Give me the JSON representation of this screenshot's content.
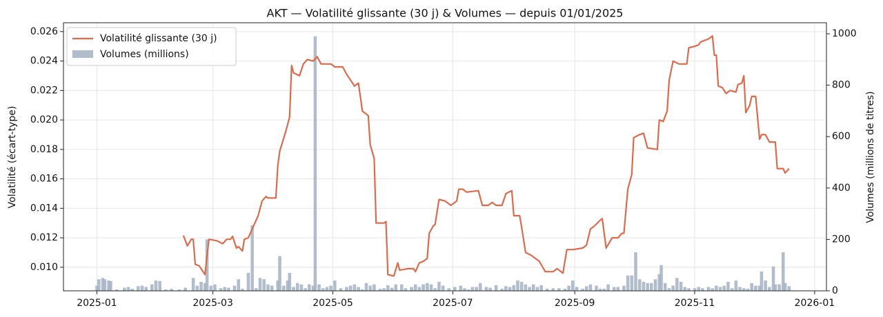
{
  "chart_data": {
    "type": "combo",
    "title": "AKT — Volatilité glissante (30 j) & Volumes — depuis 01/01/2025",
    "ylabel": "Volatilité (écart-type)",
    "y2label": "Volumes (millions de titres)",
    "xlim": [
      -17,
      371
    ],
    "xticks": [
      {
        "value": 0,
        "label": "2025-01"
      },
      {
        "value": 59,
        "label": "2025-03"
      },
      {
        "value": 120,
        "label": "2025-05"
      },
      {
        "value": 181,
        "label": "2025-07"
      },
      {
        "value": 243,
        "label": "2025-09"
      },
      {
        "value": 304,
        "label": "2025-11"
      },
      {
        "value": 365,
        "label": "2026-01"
      }
    ],
    "ylim": [
      0.0084,
      0.0266
    ],
    "yticks": [
      {
        "value": 0.01,
        "label": "0.010"
      },
      {
        "value": 0.012,
        "label": "0.012"
      },
      {
        "value": 0.014,
        "label": "0.014"
      },
      {
        "value": 0.016,
        "label": "0.016"
      },
      {
        "value": 0.018,
        "label": "0.018"
      },
      {
        "value": 0.02,
        "label": "0.020"
      },
      {
        "value": 0.022,
        "label": "0.022"
      },
      {
        "value": 0.024,
        "label": "0.024"
      },
      {
        "value": 0.026,
        "label": "0.026"
      }
    ],
    "y2lim": [
      0,
      1043
    ],
    "y2ticks": [
      0,
      200,
      400,
      600,
      800,
      1000
    ],
    "grid": true,
    "legend": "upper left",
    "series": [
      {
        "name": "Volatilité glissante (30 j)",
        "type": "line",
        "color": "#e0694a",
        "x": [
          44,
          46,
          48,
          49,
          50,
          52,
          55,
          56,
          57,
          61,
          64,
          66,
          68,
          69,
          71,
          72,
          74,
          75,
          77,
          79,
          82,
          84,
          86,
          87,
          91,
          92,
          93,
          96,
          98,
          99,
          100,
          103,
          105,
          107,
          110,
          112,
          114,
          119,
          121,
          125,
          127,
          131,
          133,
          135,
          138,
          139,
          141,
          142,
          146,
          147,
          148,
          151,
          153,
          154,
          158,
          161,
          162,
          164,
          166,
          168,
          169,
          171,
          172,
          174,
          177,
          180,
          183,
          184,
          186,
          188,
          194,
          196,
          199,
          201,
          203,
          206,
          208,
          211,
          212,
          215,
          216,
          218,
          221,
          225,
          228,
          232,
          234,
          237,
          239,
          242,
          247,
          249,
          251,
          253,
          256,
          257,
          259,
          262,
          265,
          267,
          268,
          270,
          272,
          273,
          276,
          278,
          280,
          285,
          286,
          288,
          290,
          291,
          293,
          296,
          300,
          301,
          304,
          306,
          307,
          311,
          313,
          314,
          315,
          316,
          318,
          320,
          322,
          325,
          326,
          328,
          329,
          330,
          332,
          333,
          335,
          337,
          338,
          340,
          342,
          345,
          346,
          349,
          350,
          352
        ],
        "values": [
          0.01215,
          0.01145,
          0.0119,
          0.0119,
          0.0102,
          0.0101,
          0.0095,
          0.0108,
          0.0119,
          0.0118,
          0.0116,
          0.0119,
          0.0119,
          0.0121,
          0.0113,
          0.0114,
          0.0111,
          0.0119,
          0.012,
          0.0126,
          0.0135,
          0.0145,
          0.0148,
          0.0147,
          0.0147,
          0.0169,
          0.0179,
          0.0192,
          0.0202,
          0.0237,
          0.0232,
          0.023,
          0.0238,
          0.0241,
          0.024,
          0.0243,
          0.0238,
          0.0238,
          0.0236,
          0.0236,
          0.0231,
          0.0223,
          0.0225,
          0.0206,
          0.0203,
          0.0183,
          0.0174,
          0.013,
          0.013,
          0.0131,
          0.0095,
          0.0094,
          0.0103,
          0.0098,
          0.0099,
          0.0099,
          0.0097,
          0.0103,
          0.0104,
          0.0106,
          0.0123,
          0.0128,
          0.0129,
          0.0146,
          0.0145,
          0.0142,
          0.0145,
          0.0153,
          0.0153,
          0.0151,
          0.0152,
          0.0142,
          0.0142,
          0.0144,
          0.0142,
          0.0142,
          0.015,
          0.0152,
          0.0135,
          0.0135,
          0.0127,
          0.011,
          0.0108,
          0.0104,
          0.0097,
          0.0097,
          0.0099,
          0.0096,
          0.0112,
          0.0112,
          0.0113,
          0.0115,
          0.0126,
          0.0128,
          0.0132,
          0.0133,
          0.0113,
          0.012,
          0.012,
          0.0123,
          0.0123,
          0.0153,
          0.0163,
          0.0188,
          0.019,
          0.0191,
          0.0181,
          0.018,
          0.02,
          0.0199,
          0.0206,
          0.0227,
          0.024,
          0.0238,
          0.0238,
          0.0249,
          0.025,
          0.0251,
          0.0253,
          0.0255,
          0.0257,
          0.0244,
          0.0244,
          0.0223,
          0.0222,
          0.0218,
          0.022,
          0.0219,
          0.0224,
          0.0225,
          0.023,
          0.0205,
          0.021,
          0.0216,
          0.0216,
          0.0187,
          0.019,
          0.019,
          0.0185,
          0.0185,
          0.0167,
          0.0167,
          0.0164,
          0.0167
        ]
      },
      {
        "name": "Volumes (millions)",
        "type": "bar",
        "axis": "y2",
        "color": "#a3b1c4",
        "x": [
          0,
          1,
          3,
          4,
          6,
          7,
          10,
          14,
          16,
          18,
          21,
          23,
          25,
          28,
          30,
          32,
          35,
          38,
          42,
          45,
          49,
          51,
          53,
          55,
          56,
          58,
          60,
          63,
          65,
          67,
          70,
          72,
          74,
          77,
          79,
          81,
          83,
          85,
          87,
          89,
          92,
          93,
          95,
          97,
          98,
          100,
          102,
          104,
          106,
          108,
          110,
          111,
          113,
          115,
          117,
          119,
          121,
          124,
          127,
          129,
          131,
          133,
          135,
          137,
          139,
          141,
          144,
          146,
          148,
          150,
          152,
          155,
          157,
          160,
          162,
          164,
          166,
          168,
          170,
          172,
          174,
          176,
          179,
          182,
          185,
          187,
          189,
          191,
          193,
          195,
          198,
          200,
          203,
          206,
          208,
          210,
          212,
          214,
          216,
          218,
          220,
          222,
          224,
          226,
          229,
          232,
          235,
          238,
          240,
          242,
          244,
          247,
          249,
          251,
          254,
          256,
          258,
          260,
          263,
          265,
          268,
          270,
          272,
          274,
          276,
          278,
          280,
          282,
          284,
          286,
          287,
          289,
          291,
          293,
          295,
          297,
          299,
          301,
          304,
          306,
          308,
          311,
          313,
          315,
          317,
          319,
          321,
          323,
          325,
          327,
          329,
          331,
          333,
          335,
          337,
          338,
          340,
          342,
          344,
          345,
          347,
          349,
          350,
          352
        ],
        "values": [
          20,
          45,
          50,
          45,
          40,
          38,
          5,
          12,
          15,
          8,
          18,
          20,
          15,
          25,
          40,
          38,
          5,
          8,
          5,
          12,
          50,
          20,
          35,
          30,
          200,
          20,
          25,
          10,
          15,
          12,
          20,
          45,
          8,
          70,
          255,
          10,
          50,
          45,
          25,
          20,
          40,
          135,
          20,
          40,
          70,
          15,
          30,
          25,
          10,
          25,
          20,
          990,
          25,
          10,
          15,
          20,
          40,
          10,
          15,
          20,
          25,
          15,
          5,
          30,
          20,
          25,
          8,
          10,
          22,
          12,
          25,
          25,
          10,
          15,
          25,
          15,
          25,
          30,
          25,
          10,
          35,
          20,
          10,
          15,
          20,
          10,
          5,
          15,
          15,
          30,
          15,
          12,
          22,
          8,
          18,
          15,
          22,
          40,
          35,
          25,
          15,
          25,
          15,
          22,
          8,
          10,
          10,
          8,
          20,
          40,
          15,
          8,
          18,
          25,
          20,
          8,
          8,
          25,
          15,
          15,
          20,
          60,
          60,
          150,
          45,
          35,
          30,
          30,
          45,
          65,
          100,
          30,
          10,
          20,
          50,
          35,
          15,
          10,
          10,
          15,
          10,
          15,
          10,
          20,
          15,
          20,
          35,
          10,
          40,
          15,
          10,
          8,
          30,
          20,
          20,
          75,
          40,
          15,
          95,
          25,
          25,
          150,
          30,
          18
        ]
      }
    ]
  }
}
